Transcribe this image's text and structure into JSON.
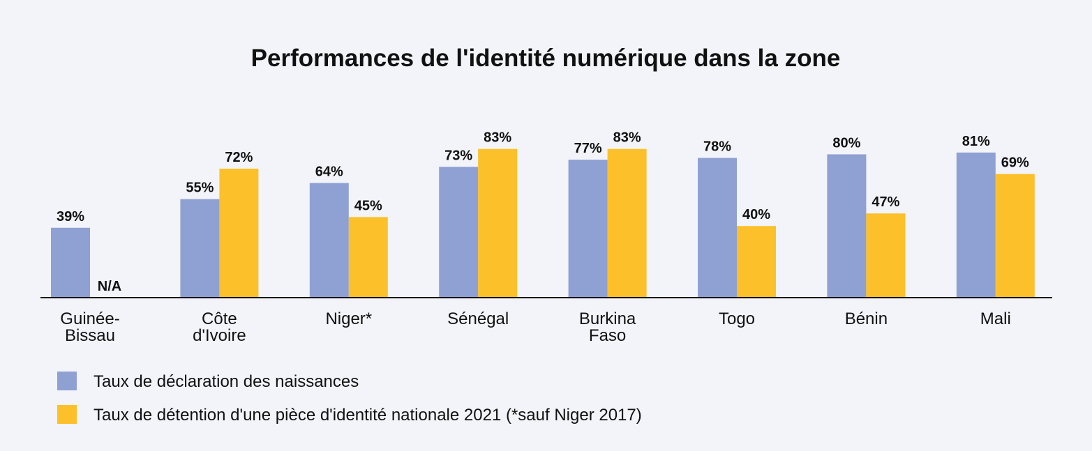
{
  "chart_data": {
    "type": "bar",
    "title": "Performances de l'identité numérique dans la zone",
    "categories": [
      [
        "Guinée-",
        "Bissau"
      ],
      [
        "Côte",
        "d'Ivoire"
      ],
      [
        "Niger*"
      ],
      [
        "Sénégal"
      ],
      [
        "Burkina",
        "Faso"
      ],
      [
        "Togo"
      ],
      [
        "Bénin"
      ],
      [
        "Mali"
      ]
    ],
    "series": [
      {
        "name": "Taux de déclaration des naissances",
        "color": "#8fa1d3",
        "values": [
          39,
          55,
          64,
          73,
          77,
          78,
          80,
          81
        ],
        "labels": [
          "39%",
          "55%",
          "64%",
          "73%",
          "77%",
          "78%",
          "80%",
          "81%"
        ]
      },
      {
        "name": "Taux de détention d'une pièce d'identité nationale 2021 (*sauf Niger 2017)",
        "color": "#fcc02a",
        "values": [
          null,
          72,
          45,
          83,
          83,
          40,
          47,
          69
        ],
        "labels": [
          "N/A",
          "72%",
          "45%",
          "83%",
          "83%",
          "40%",
          "47%",
          "69%"
        ]
      }
    ],
    "ylim": [
      0,
      100
    ],
    "grid": false,
    "legend_position": "bottom-left"
  }
}
